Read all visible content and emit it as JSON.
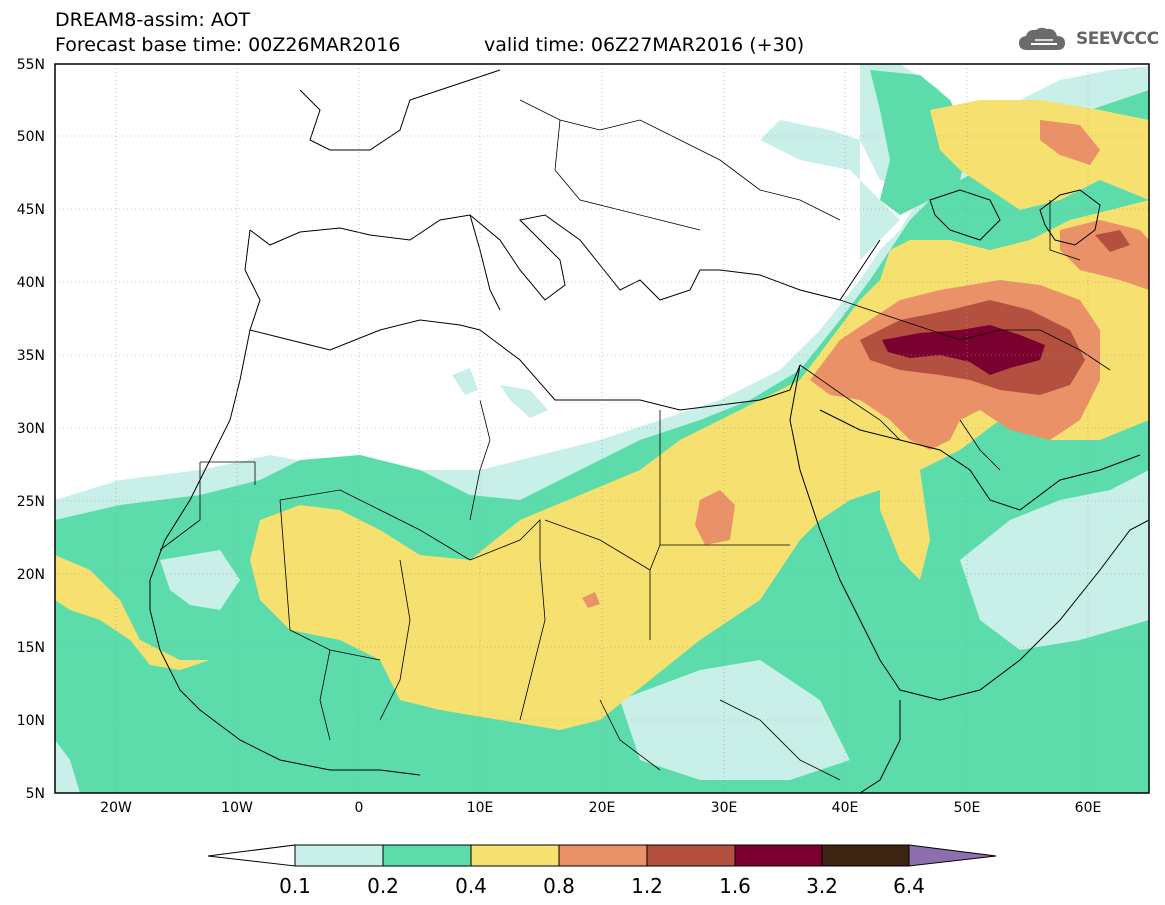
{
  "header": {
    "title": "DREAM8-assim: AOT",
    "base_time": "Forecast base time: 00Z26MAR2016",
    "valid_time": "valid time: 06Z27MAR2016 (+30)",
    "logo_text": "SEEVCCC"
  },
  "map": {
    "lon_range": [
      -25,
      65
    ],
    "lat_range": [
      5,
      55
    ],
    "lon_ticks": [
      "20W",
      "10W",
      "0",
      "10E",
      "20E",
      "30E",
      "40E",
      "50E",
      "60E"
    ],
    "lat_ticks": [
      "55N",
      "50N",
      "45N",
      "40N",
      "35N",
      "30N",
      "25N",
      "20N",
      "15N",
      "10N",
      "5N"
    ]
  },
  "colorbar": {
    "labels": [
      "0.1",
      "0.2",
      "0.4",
      "0.8",
      "1.2",
      "1.6",
      "3.2",
      "6.4"
    ],
    "colors": [
      "#ffffff",
      "#c8f0e8",
      "#5bdcaa",
      "#f5e070",
      "#eb9167",
      "#b4503f",
      "#7a0030",
      "#3b2412",
      "#8e6fae"
    ]
  }
}
